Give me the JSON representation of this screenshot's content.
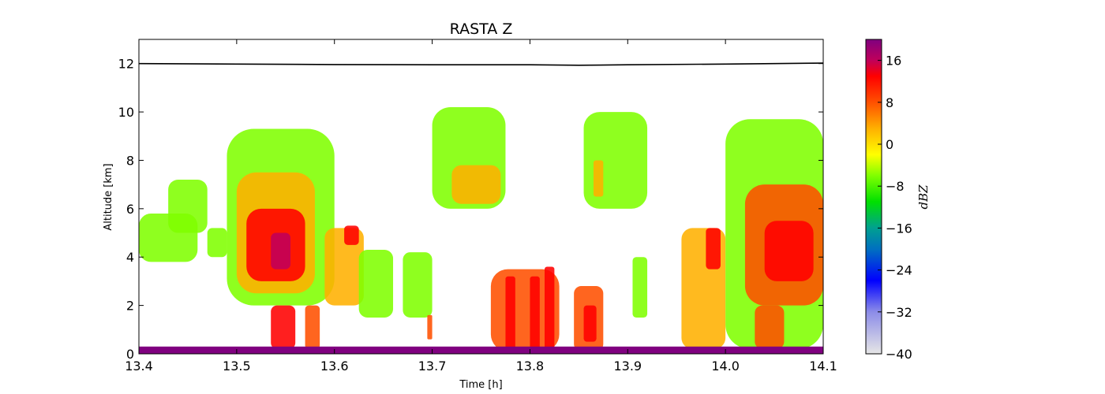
{
  "chart_data": {
    "type": "heatmap",
    "title": "RASTA Z",
    "xlabel": "Time [h]",
    "ylabel": "Altitude [km]",
    "xlim": [
      13.4,
      14.1
    ],
    "ylim": [
      0,
      13
    ],
    "x_ticks": [
      13.4,
      13.5,
      13.6,
      13.7,
      13.8,
      13.9,
      14.0,
      14.1
    ],
    "x_tick_labels": [
      "13.4",
      "13.5",
      "13.6",
      "13.7",
      "13.8",
      "13.9",
      "14.0",
      "14.1"
    ],
    "y_ticks": [
      0,
      2,
      4,
      6,
      8,
      10,
      12
    ],
    "y_tick_labels": [
      "0",
      "2",
      "4",
      "6",
      "8",
      "10",
      "12"
    ],
    "colorbar": {
      "label": "dBZ",
      "range": [
        -40,
        20
      ],
      "ticks": [
        -40,
        -32,
        -24,
        -16,
        -8,
        0,
        8,
        16
      ],
      "tick_labels": [
        "−40",
        "−32",
        "−24",
        "−16",
        "−8",
        "0",
        "8",
        "16"
      ],
      "colormap_stops": [
        {
          "v": -40,
          "c": "#e6e6e6"
        },
        {
          "v": -32,
          "c": "#8c8ce8"
        },
        {
          "v": -26,
          "c": "#0000ff"
        },
        {
          "v": -20,
          "c": "#0070c0"
        },
        {
          "v": -16,
          "c": "#00a090"
        },
        {
          "v": -11,
          "c": "#00e000"
        },
        {
          "v": -6,
          "c": "#80ff00"
        },
        {
          "v": -2,
          "c": "#ffff00"
        },
        {
          "v": 3,
          "c": "#ffb000"
        },
        {
          "v": 8,
          "c": "#ff5000"
        },
        {
          "v": 13,
          "c": "#ff0000"
        },
        {
          "v": 16,
          "c": "#c0005a"
        },
        {
          "v": 20,
          "c": "#800080"
        }
      ]
    },
    "aircraft_altitude_line": {
      "x": [
        13.4,
        13.5,
        13.6,
        13.7,
        13.8,
        13.85,
        13.9,
        14.0,
        14.1
      ],
      "y": [
        12.0,
        11.98,
        11.96,
        11.95,
        11.95,
        11.93,
        11.95,
        11.98,
        12.02
      ],
      "color": "#000000"
    },
    "echo_regions": [
      {
        "x0": 13.4,
        "x1": 13.46,
        "y0": 3.8,
        "y1": 5.8,
        "z": -8
      },
      {
        "x0": 13.43,
        "x1": 13.47,
        "y0": 5.0,
        "y1": 7.2,
        "z": -9
      },
      {
        "x0": 13.47,
        "x1": 13.49,
        "y0": 4.0,
        "y1": 5.2,
        "z": -9
      },
      {
        "x0": 13.49,
        "x1": 13.6,
        "y0": 2.0,
        "y1": 9.3,
        "z": -6
      },
      {
        "x0": 13.5,
        "x1": 13.58,
        "y0": 2.5,
        "y1": 7.5,
        "z": 3
      },
      {
        "x0": 13.51,
        "x1": 13.57,
        "y0": 3.0,
        "y1": 6.0,
        "z": 10
      },
      {
        "x0": 13.535,
        "x1": 13.555,
        "y0": 3.5,
        "y1": 5.0,
        "z": 14
      },
      {
        "x0": 13.535,
        "x1": 13.56,
        "y0": 0.2,
        "y1": 2.0,
        "z": 9
      },
      {
        "x0": 13.57,
        "x1": 13.585,
        "y0": 0.2,
        "y1": 2.0,
        "z": 7
      },
      {
        "x0": 13.59,
        "x1": 13.63,
        "y0": 2.0,
        "y1": 5.2,
        "z": 0
      },
      {
        "x0": 13.61,
        "x1": 13.625,
        "y0": 4.5,
        "y1": 5.3,
        "z": 9
      },
      {
        "x0": 13.625,
        "x1": 13.66,
        "y0": 1.5,
        "y1": 4.3,
        "z": -8
      },
      {
        "x0": 13.67,
        "x1": 13.7,
        "y0": 1.5,
        "y1": 4.2,
        "z": -7
      },
      {
        "x0": 13.695,
        "x1": 13.7,
        "y0": 0.6,
        "y1": 1.6,
        "z": 6
      },
      {
        "x0": 13.7,
        "x1": 13.775,
        "y0": 6.0,
        "y1": 10.2,
        "z": -6
      },
      {
        "x0": 13.72,
        "x1": 13.77,
        "y0": 6.2,
        "y1": 7.8,
        "z": 1
      },
      {
        "x0": 13.76,
        "x1": 13.83,
        "y0": 0.1,
        "y1": 3.5,
        "z": 6
      },
      {
        "x0": 13.775,
        "x1": 13.785,
        "y0": 0.2,
        "y1": 3.2,
        "z": 13
      },
      {
        "x0": 13.8,
        "x1": 13.81,
        "y0": 0.2,
        "y1": 3.2,
        "z": 12
      },
      {
        "x0": 13.815,
        "x1": 13.825,
        "y0": 0.2,
        "y1": 3.6,
        "z": 12
      },
      {
        "x0": 13.845,
        "x1": 13.875,
        "y0": 0.1,
        "y1": 2.8,
        "z": 6
      },
      {
        "x0": 13.855,
        "x1": 13.868,
        "y0": 0.5,
        "y1": 2.0,
        "z": 13
      },
      {
        "x0": 13.855,
        "x1": 13.92,
        "y0": 6.0,
        "y1": 10.0,
        "z": -7
      },
      {
        "x0": 13.865,
        "x1": 13.875,
        "y0": 6.5,
        "y1": 8.0,
        "z": 2
      },
      {
        "x0": 13.905,
        "x1": 13.92,
        "y0": 1.5,
        "y1": 4.0,
        "z": -7
      },
      {
        "x0": 13.955,
        "x1": 14.0,
        "y0": 0.2,
        "y1": 5.2,
        "z": 0
      },
      {
        "x0": 13.98,
        "x1": 13.995,
        "y0": 3.5,
        "y1": 5.2,
        "z": 11
      },
      {
        "x0": 14.0,
        "x1": 14.1,
        "y0": 0.2,
        "y1": 9.7,
        "z": -6
      },
      {
        "x0": 14.02,
        "x1": 14.1,
        "y0": 2.0,
        "y1": 7.0,
        "z": 4
      },
      {
        "x0": 14.04,
        "x1": 14.09,
        "y0": 3.0,
        "y1": 5.5,
        "z": 11
      },
      {
        "x0": 14.03,
        "x1": 14.06,
        "y0": 0.2,
        "y1": 2.0,
        "z": 7
      }
    ],
    "surface_echo": {
      "x0": 13.4,
      "x1": 14.1,
      "y0": 0.0,
      "y1": 0.3,
      "z": 18
    },
    "grid": false
  }
}
